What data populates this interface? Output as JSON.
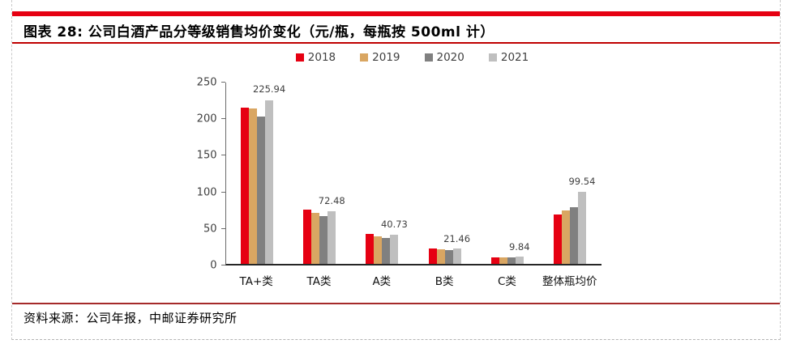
{
  "figure": {
    "title": "图表 28: 公司白酒产品分等级销售均价变化（元/瓶，每瓶按 500ml 计）",
    "source": "资料来源：公司年报，中邮证券研究所"
  },
  "colors": {
    "top_bar": "#e60012",
    "title_rule": "#c00000",
    "source_rule": "#a52a2a",
    "axis_line": "#6b6b6b",
    "baseline": "#262626",
    "label_text": "#404040"
  },
  "chart_data": {
    "type": "bar",
    "title": "公司白酒产品分等级销售均价变化（元/瓶，每瓶按 500ml 计）",
    "categories": [
      "TA+类",
      "TA类",
      "A类",
      "B类",
      "C类",
      "整体瓶均价"
    ],
    "series": [
      {
        "name": "2018",
        "color": "#e60012",
        "values": [
          215.5,
          74.5,
          41.0,
          21.0,
          9.4,
          68.0
        ]
      },
      {
        "name": "2019",
        "color": "#d9a662",
        "values": [
          214.0,
          70.0,
          38.5,
          20.0,
          8.8,
          74.0
        ]
      },
      {
        "name": "2020",
        "color": "#808080",
        "values": [
          203.0,
          66.0,
          36.0,
          19.5,
          8.9,
          78.5
        ]
      },
      {
        "name": "2021",
        "color": "#bfbfbf",
        "values": [
          225.94,
          72.48,
          40.73,
          21.46,
          9.84,
          99.54
        ]
      }
    ],
    "data_labels": {
      "series": "2021",
      "values": [
        "225.94",
        "72.48",
        "40.73",
        "21.46",
        "9.84",
        "99.54"
      ]
    },
    "y_ticks": [
      "0",
      "50",
      "100",
      "150",
      "200",
      "250"
    ],
    "ylim": [
      0,
      250
    ],
    "grid": false,
    "legend_position": "top-center",
    "xlabel": "",
    "ylabel": ""
  }
}
